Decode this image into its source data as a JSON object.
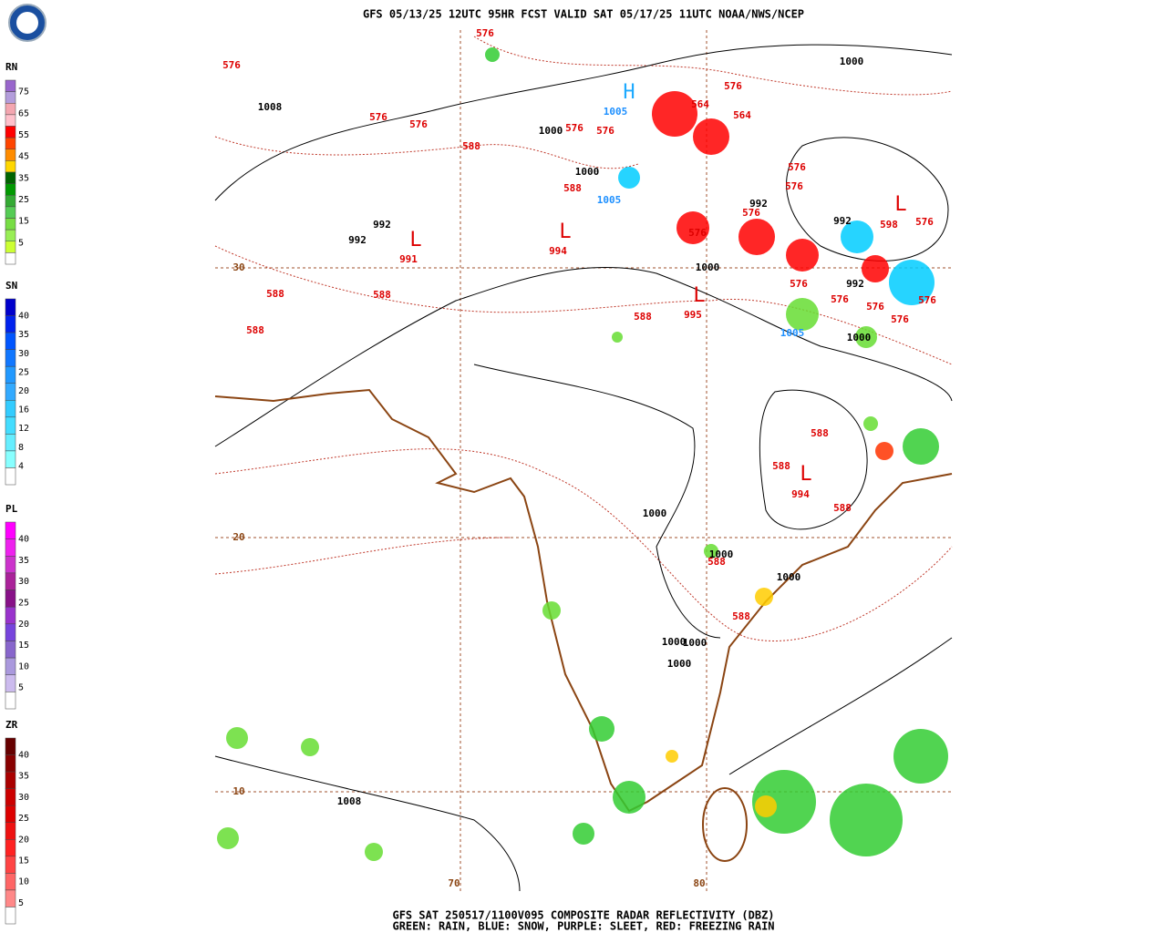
{
  "header": {
    "title": "GFS 05/13/25 12UTC 95HR FCST VALID SAT 05/17/25 11UTC NOAA/NWS/NCEP"
  },
  "legends": [
    {
      "label": "RN",
      "ticks": [
        75,
        65,
        55,
        45,
        35,
        25,
        15,
        5
      ]
    },
    {
      "label": "SN",
      "ticks": [
        40,
        35,
        30,
        25,
        20,
        16,
        12,
        8,
        4
      ]
    },
    {
      "label": "PL",
      "ticks": [
        40,
        35,
        30,
        25,
        20,
        15,
        10,
        5
      ]
    },
    {
      "label": "ZR",
      "ticks": [
        40,
        35,
        30,
        25,
        20,
        15,
        10,
        5
      ]
    }
  ],
  "map": {
    "grid_labels": [
      "30",
      "20",
      "10",
      "70",
      "80"
    ],
    "red_labels": [
      "576",
      "576",
      "576",
      "576",
      "588",
      "576",
      "576",
      "588",
      "994",
      "991",
      "588",
      "588",
      "588",
      "588",
      "995",
      "576",
      "564",
      "564",
      "576",
      "576",
      "576",
      "576",
      "598",
      "576",
      "576",
      "576",
      "576",
      "576",
      "576",
      "588",
      "588",
      "994",
      "588",
      "588",
      "588"
    ],
    "black_labels": [
      "1000",
      "1008",
      "1000",
      "1000",
      "992",
      "992",
      "992",
      "992",
      "1000",
      "992",
      "1000",
      "1000",
      "1000",
      "1000",
      "1000",
      "1000",
      "1000",
      "1008"
    ],
    "blue_labels": [
      "1005",
      "1005",
      "1005"
    ],
    "high_centers": [
      "H"
    ],
    "low_centers": [
      "L",
      "L",
      "L",
      "L",
      "L"
    ]
  },
  "footer": {
    "line1": "GFS SAT 250517/1100V095 COMPOSITE RADAR REFLECTIVITY (DBZ)",
    "line2": "GREEN: RAIN, BLUE: SNOW, PURPLE: SLEET, RED: FREEZING RAIN"
  }
}
